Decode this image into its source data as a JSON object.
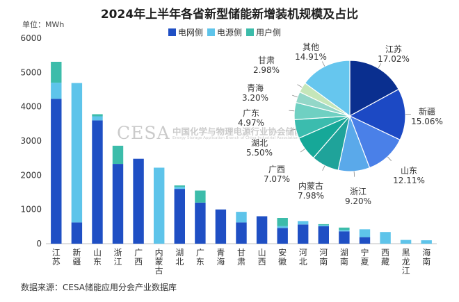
{
  "title": "2024年上半年各省新型储能新增装机规模及占比",
  "unit_label": "单位：MWh",
  "source": "数据来源：CESA储能应用分会产业数据库",
  "watermark": {
    "logo": "CESA",
    "cn": "中国化学与物理电源行业协会储能应用分会",
    "en": "Energy Storage Application Branch of China Industrial Association of Power Sources"
  },
  "colors": {
    "grid_side": "#1f4fc4",
    "source_side": "#5ec4ea",
    "user_side": "#3cbcaa"
  },
  "chart_data": [
    {
      "type": "bar",
      "stacked": true,
      "categories": [
        "江苏",
        "新疆",
        "山东",
        "浙江",
        "广西",
        "内蒙古",
        "湖北",
        "广东",
        "青海",
        "甘肃",
        "山西",
        "安徽",
        "河北",
        "河南",
        "湖南",
        "宁夏",
        "西藏",
        "黑龙江",
        "海南"
      ],
      "series": [
        {
          "name": "电网侧",
          "values": [
            4230,
            620,
            3600,
            2330,
            2480,
            0,
            1600,
            1200,
            1000,
            620,
            800,
            460,
            560,
            510,
            360,
            190,
            0,
            0,
            0
          ]
        },
        {
          "name": "电源侧",
          "values": [
            470,
            4070,
            120,
            0,
            0,
            2220,
            60,
            0,
            0,
            310,
            0,
            50,
            100,
            30,
            40,
            230,
            340,
            110,
            100
          ]
        },
        {
          "name": "用户侧",
          "values": [
            610,
            0,
            60,
            530,
            0,
            0,
            40,
            350,
            0,
            0,
            0,
            240,
            0,
            30,
            70,
            0,
            0,
            0,
            0
          ]
        }
      ],
      "ylim": [
        0,
        6000
      ],
      "yticks": [
        0,
        1000,
        2000,
        3000,
        4000,
        5000,
        6000
      ],
      "grid": false,
      "legend": "top-right"
    },
    {
      "type": "pie",
      "slices": [
        {
          "label": "江苏",
          "value_label": "17.02%",
          "value": 17.02
        },
        {
          "label": "新疆",
          "value_label": "15.06%",
          "value": 15.06
        },
        {
          "label": "山东",
          "value_label": "12.11%",
          "value": 12.11
        },
        {
          "label": "浙江",
          "value_label": "9.20%",
          "value": 9.2
        },
        {
          "label": "内蒙古",
          "value_label": "7.98%",
          "value": 7.98
        },
        {
          "label": "广西",
          "value_label": "7.07%",
          "value": 7.07
        },
        {
          "label": "湖北",
          "value_label": "5.50%",
          "value": 5.5
        },
        {
          "label": "广东",
          "value_label": "4.97%",
          "value": 4.97
        },
        {
          "label": "青海",
          "value_label": "3.20%",
          "value": 3.2
        },
        {
          "label": "甘肃",
          "value_label": "2.98%",
          "value": 2.98
        },
        {
          "label": "其他",
          "value_label": "14.91%",
          "value": 14.91
        }
      ],
      "colors": [
        "#0a2f8f",
        "#1c49c4",
        "#4a80e8",
        "#5aa9ea",
        "#1fa39a",
        "#16a898",
        "#3bbcae",
        "#6fd0c2",
        "#93d7c8",
        "#c5e6b9",
        "#66c6ee"
      ]
    }
  ]
}
